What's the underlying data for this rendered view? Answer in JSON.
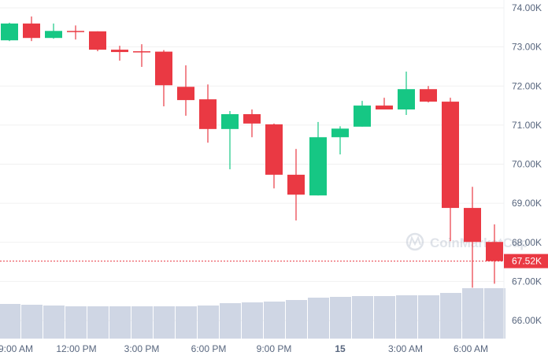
{
  "watermark": "CoinMarketCap",
  "chart_data": {
    "type": "candlestick",
    "interval": "1h",
    "x_tick_labels": [
      "9:00 AM",
      "12:00 PM",
      "3:00 PM",
      "6:00 PM",
      "9:00 PM",
      "15",
      "3:00 AM",
      "6:00 AM"
    ],
    "y_tick_labels": [
      "74.00K",
      "73.00K",
      "72.00K",
      "71.00K",
      "70.00K",
      "69.00K",
      "68.00K",
      "67.00K",
      "66.00K"
    ],
    "y_ticks": [
      74,
      73,
      72,
      71,
      70,
      69,
      68,
      67,
      66
    ],
    "ylim": [
      65.55,
      74.2
    ],
    "y_unit": "K",
    "grid": true,
    "current_price": 67.52,
    "current_price_label": "67.52K",
    "colors": {
      "up": "#16c784",
      "down": "#ea3943",
      "volume": "#cfd6e4",
      "grid": "#f1f1f1"
    },
    "candles": [
      {
        "o": 73.17,
        "h": 73.62,
        "l": 73.15,
        "c": 73.6
      },
      {
        "o": 73.6,
        "h": 73.78,
        "l": 73.15,
        "c": 73.23
      },
      {
        "o": 73.23,
        "h": 73.6,
        "l": 73.21,
        "c": 73.41
      },
      {
        "o": 73.41,
        "h": 73.55,
        "l": 73.19,
        "c": 73.4
      },
      {
        "o": 73.4,
        "h": 73.4,
        "l": 72.89,
        "c": 72.93
      },
      {
        "o": 72.93,
        "h": 73.03,
        "l": 72.65,
        "c": 72.87
      },
      {
        "o": 72.89,
        "h": 73.07,
        "l": 72.49,
        "c": 72.87
      },
      {
        "o": 72.88,
        "h": 72.92,
        "l": 71.48,
        "c": 72.02
      },
      {
        "o": 71.98,
        "h": 72.53,
        "l": 71.24,
        "c": 71.64
      },
      {
        "o": 71.66,
        "h": 72.04,
        "l": 70.55,
        "c": 70.9
      },
      {
        "o": 70.9,
        "h": 71.36,
        "l": 69.87,
        "c": 71.28
      },
      {
        "o": 71.28,
        "h": 71.4,
        "l": 70.69,
        "c": 71.04
      },
      {
        "o": 71.02,
        "h": 71.04,
        "l": 69.38,
        "c": 69.73
      },
      {
        "o": 69.73,
        "h": 70.39,
        "l": 68.56,
        "c": 69.22
      },
      {
        "o": 69.2,
        "h": 71.08,
        "l": 69.2,
        "c": 70.69
      },
      {
        "o": 70.69,
        "h": 70.97,
        "l": 70.25,
        "c": 70.91
      },
      {
        "o": 70.96,
        "h": 71.62,
        "l": 70.96,
        "c": 71.5
      },
      {
        "o": 71.5,
        "h": 71.7,
        "l": 71.4,
        "c": 71.4
      },
      {
        "o": 71.4,
        "h": 72.37,
        "l": 71.26,
        "c": 71.92
      },
      {
        "o": 71.92,
        "h": 72.0,
        "l": 71.58,
        "c": 71.6
      },
      {
        "o": 71.6,
        "h": 71.7,
        "l": 68.03,
        "c": 68.88
      },
      {
        "o": 68.88,
        "h": 69.42,
        "l": 66.84,
        "c": 68.01
      },
      {
        "o": 68.01,
        "h": 68.46,
        "l": 66.94,
        "c": 67.52
      }
    ],
    "volume_relative": [
      44,
      43,
      42,
      41,
      41,
      41,
      41,
      41,
      41,
      42,
      45,
      46,
      47,
      49,
      52,
      53,
      54,
      54,
      55,
      55,
      58,
      64,
      64
    ]
  }
}
